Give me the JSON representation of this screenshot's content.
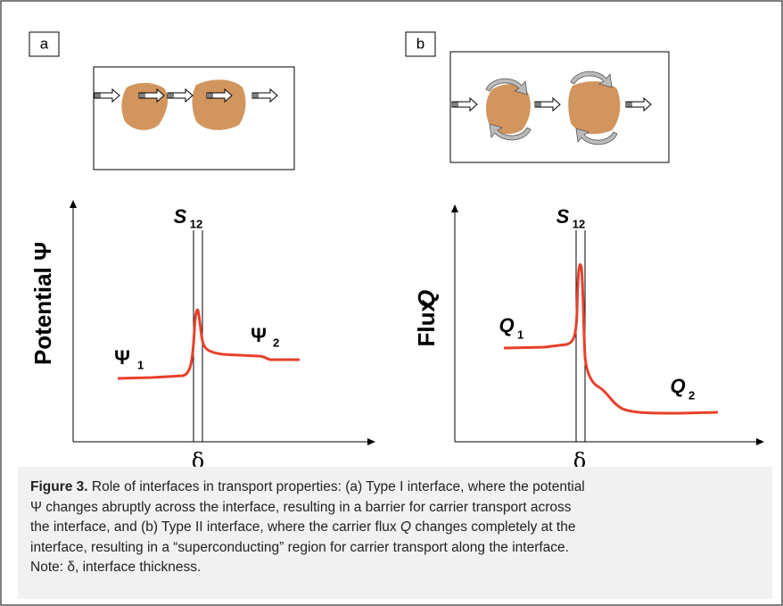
{
  "panels": [
    {
      "label": "a",
      "axis_label": "Potential Ψ",
      "interface": {
        "symbol": "S",
        "subscript": "12"
      },
      "thickness": "δ",
      "left_label": {
        "symbol": "Ψ",
        "subscript": "1"
      },
      "right_label": {
        "symbol": "Ψ",
        "subscript": "2"
      }
    },
    {
      "label": "b",
      "axis_label": {
        "word": "Flux",
        "symbol": "Q"
      },
      "interface": {
        "symbol": "S",
        "subscript": "12"
      },
      "thickness": "δ",
      "left_label": {
        "symbol": "Q",
        "subscript": "1"
      },
      "right_label": {
        "symbol": "Q",
        "subscript": "2"
      }
    }
  ],
  "caption": {
    "label": "Figure 3.",
    "lines": [
      " Role of interfaces in transport properties: (a) Type I interface, where the potential",
      "Ψ changes abruptly across the interface, resulting in a barrier for carrier transport across",
      [
        "the interface, and (b) Type II interface, where the carrier flux ",
        "Q",
        " changes completely at the"
      ],
      "interface, resulting in a “superconducting” region for carrier transport along the interface.",
      "Note: δ, interface thickness."
    ]
  }
}
